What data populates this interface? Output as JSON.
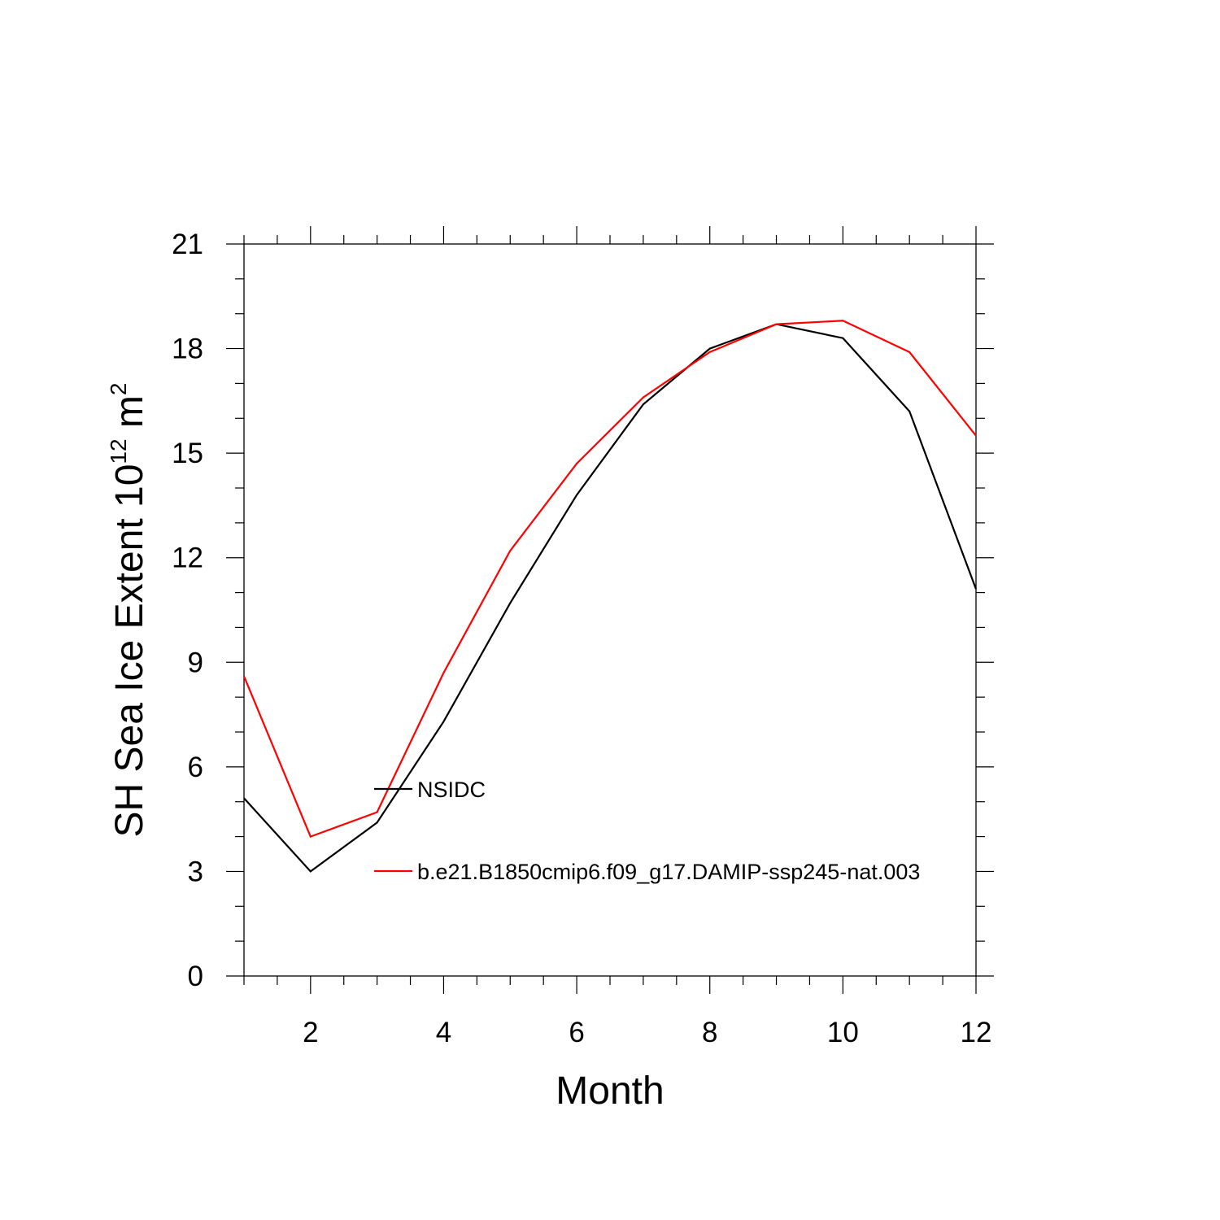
{
  "chart_data": {
    "type": "line",
    "xlabel": "Month",
    "ylabel": {
      "main": "SH Sea Ice Extent 10",
      "exponent1": "12",
      "unit": " m",
      "exponent2": "2"
    },
    "xlim": [
      1,
      12
    ],
    "ylim": [
      0,
      21
    ],
    "x_ticks": [
      2,
      4,
      6,
      8,
      10,
      12
    ],
    "y_ticks": [
      0,
      3,
      6,
      9,
      12,
      15,
      18,
      21
    ],
    "x_tick_labels": [
      "2",
      "4",
      "6",
      "8",
      "10",
      "12"
    ],
    "y_tick_labels": [
      "0",
      "3",
      "6",
      "9",
      "12",
      "15",
      "18",
      "21"
    ],
    "x": [
      1,
      2,
      3,
      4,
      5,
      6,
      7,
      8,
      9,
      10,
      11,
      12
    ],
    "grid": false,
    "legend_placement": "lower-left-inside",
    "series": [
      {
        "name": "NSIDC",
        "color": "#000000",
        "values": [
          5.1,
          3.0,
          4.4,
          7.3,
          10.7,
          13.8,
          16.4,
          18.0,
          18.7,
          18.3,
          16.2,
          11.1
        ]
      },
      {
        "name": "b.e21.B1850cmip6.f09_g17.DAMIP-ssp245-nat.003",
        "color": "#ff0000",
        "values": [
          8.6,
          4.0,
          4.7,
          8.7,
          12.2,
          14.7,
          16.6,
          17.9,
          18.7,
          18.8,
          17.9,
          15.5
        ]
      }
    ]
  }
}
